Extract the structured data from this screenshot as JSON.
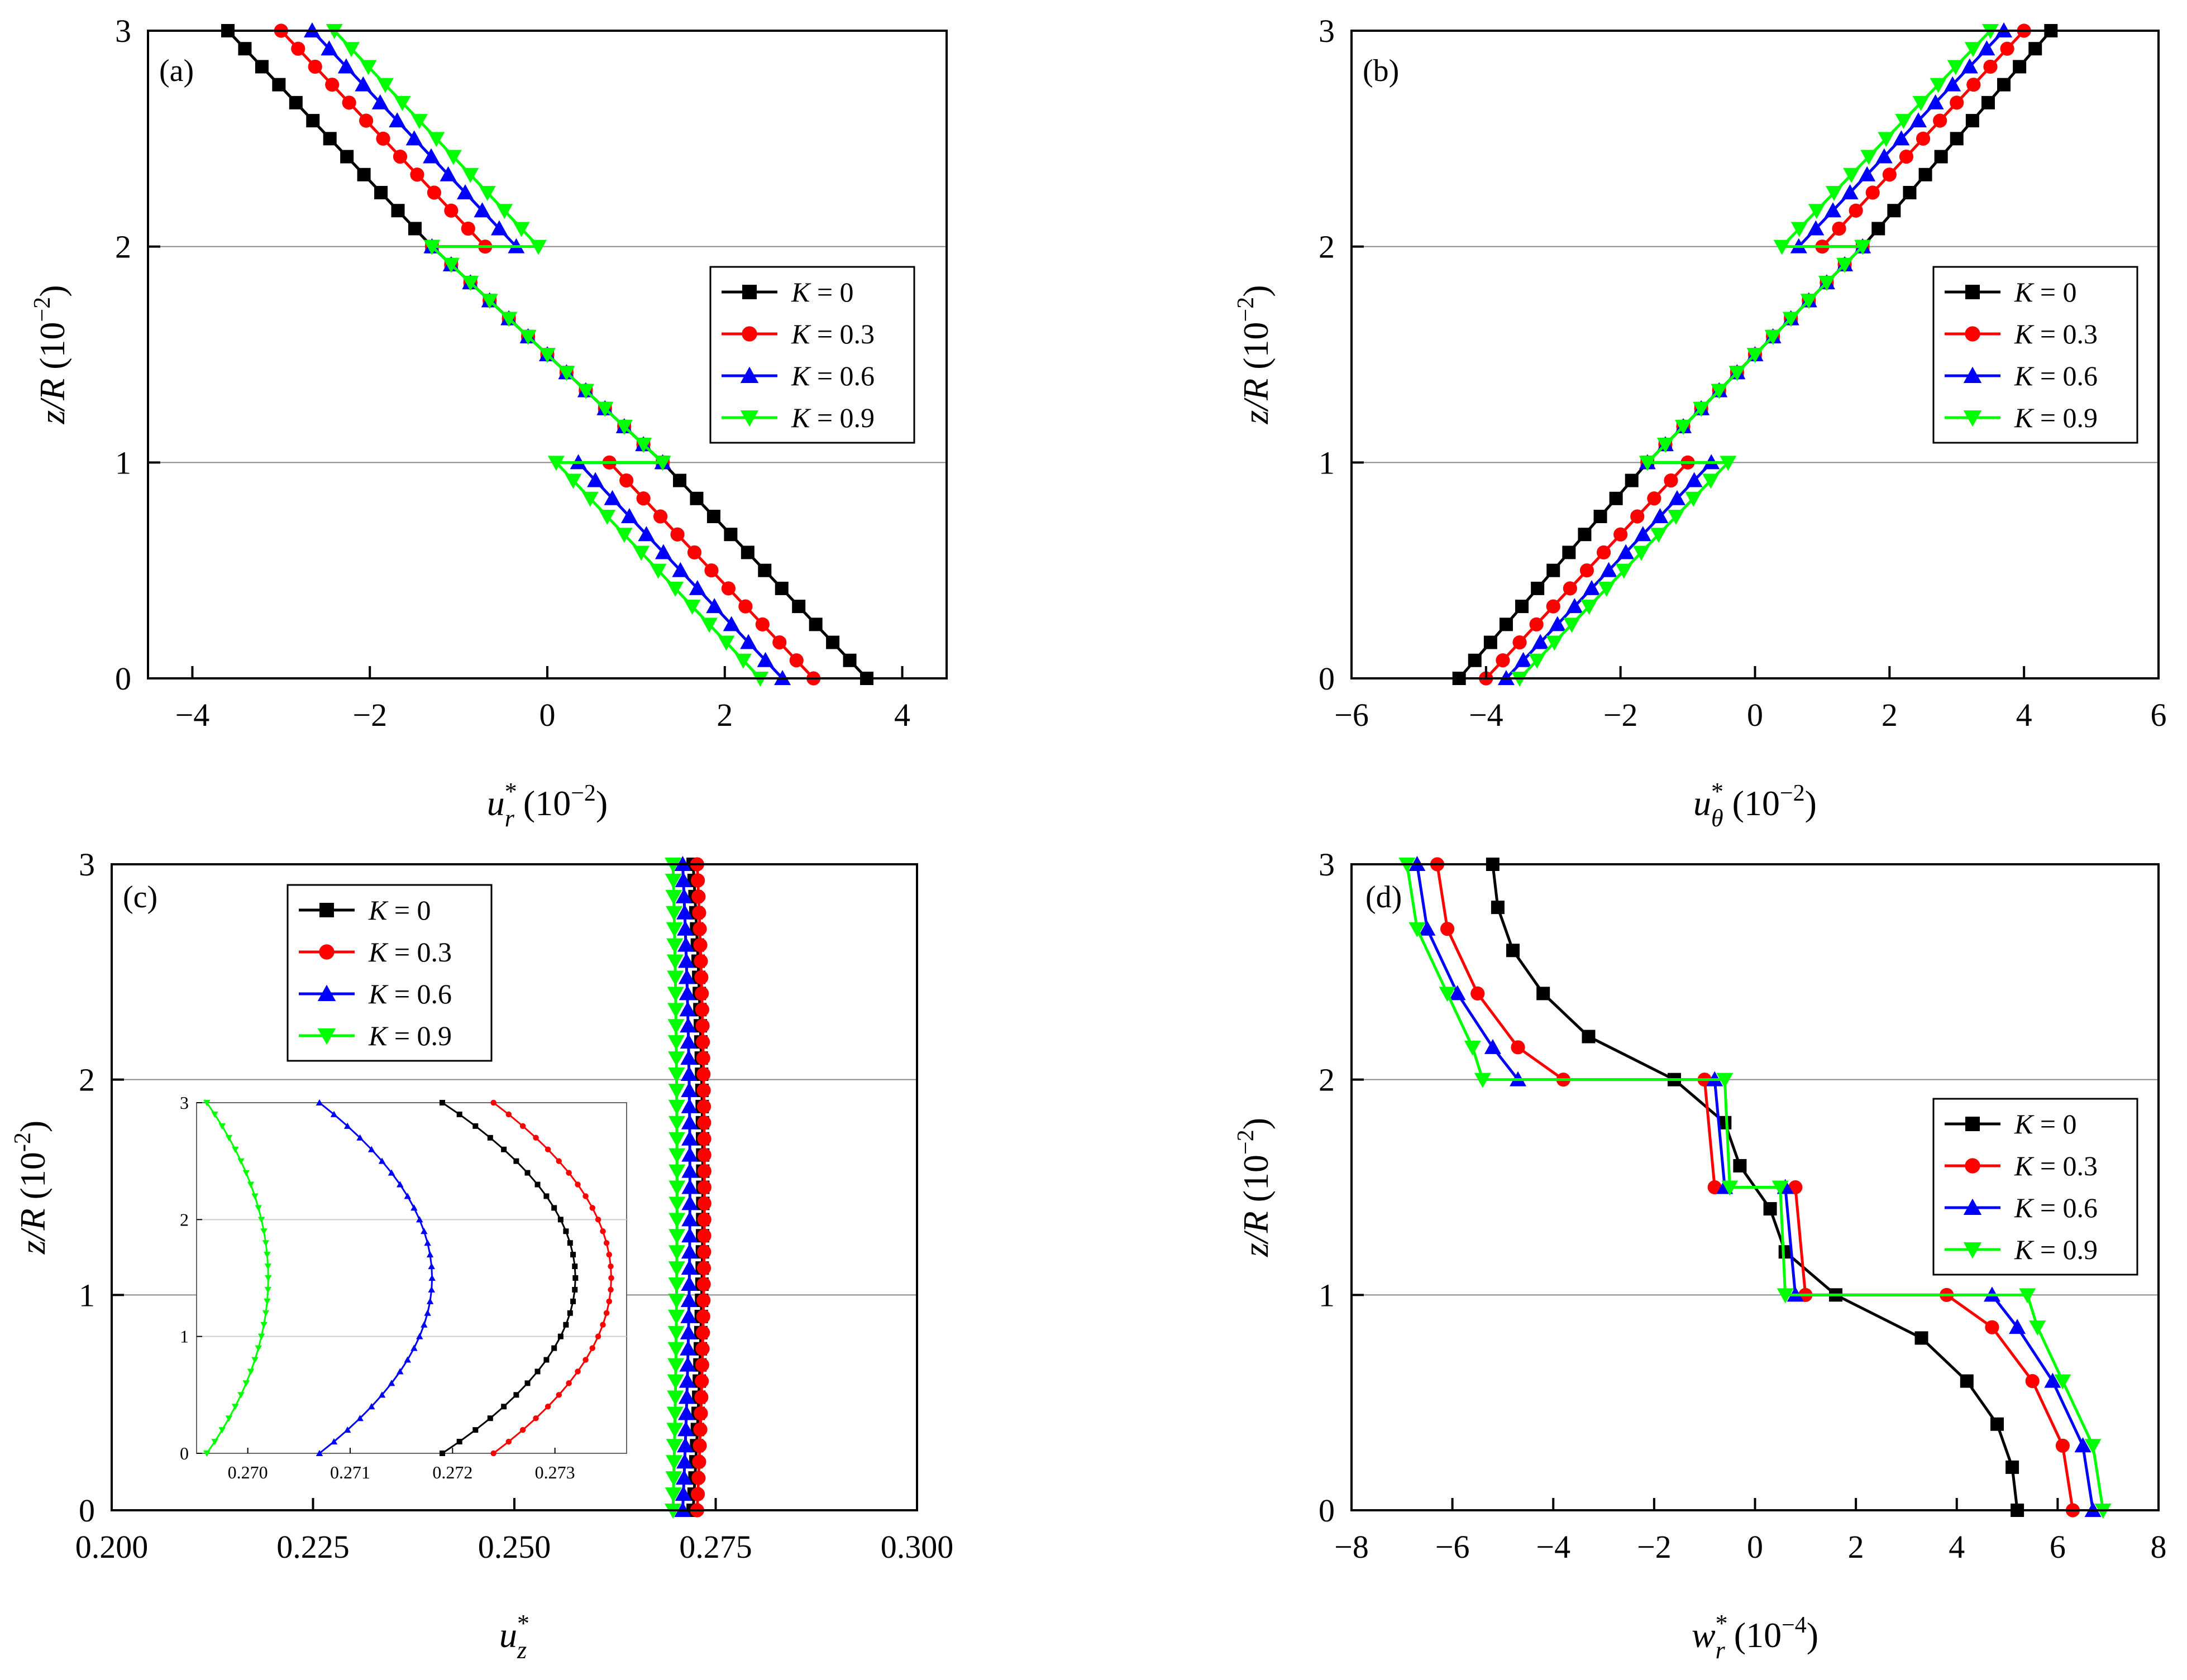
{
  "chart_data": [
    {
      "id": "a",
      "type": "line",
      "panel_label": "(a)",
      "xlabel": "u_r^* (10^-2)",
      "xlabel_main": "u",
      "xlabel_sup": "*",
      "xlabel_sub": "r",
      "xlabel_unit": " (10",
      "xlabel_exp": "−2",
      "xlabel_close": ")",
      "ylabel": "z/R (10^-2)",
      "ylabel_main": "z/R",
      "ylabel_unit": " (10",
      "ylabel_exp": "−2",
      "ylabel_close": ")",
      "xlim": [
        -4.5,
        4.5
      ],
      "ylim": [
        0,
        3
      ],
      "xticks": [
        -4,
        -2,
        0,
        2,
        4
      ],
      "xtick_labels": [
        "−4",
        "−2",
        "0",
        "2",
        "4"
      ],
      "yticks": [
        0,
        1,
        2,
        3
      ],
      "ytick_labels": [
        "0",
        "1",
        "2",
        "3"
      ],
      "hlines": [
        1,
        2
      ],
      "legend": {
        "position": "right-middle",
        "labels": [
          "K = 0",
          "K = 0.3",
          "K = 0.6",
          "K = 0.9"
        ]
      },
      "series": [
        {
          "name": "K = 0",
          "K": "0",
          "color": "#000000",
          "marker": "square",
          "segments": [
            {
              "z": [
                0,
                1
              ],
              "x": [
                3.6,
                1.3
              ]
            },
            {
              "z": [
                1,
                2
              ],
              "x": [
                1.3,
                -1.3
              ]
            },
            {
              "z": [
                2,
                3
              ],
              "x": [
                -1.3,
                -3.6
              ]
            }
          ]
        },
        {
          "name": "K = 0.3",
          "K": "0.3",
          "color": "#ff0000",
          "marker": "circle",
          "segments": [
            {
              "z": [
                0,
                1
              ],
              "x": [
                3.0,
                0.7
              ]
            },
            {
              "z": [
                1,
                2
              ],
              "x": [
                1.3,
                -1.3
              ]
            },
            {
              "z": [
                2,
                3
              ],
              "x": [
                -0.7,
                -3.0
              ]
            }
          ]
        },
        {
          "name": "K = 0.6",
          "K": "0.6",
          "color": "#0000ff",
          "marker": "triangle-up",
          "segments": [
            {
              "z": [
                0,
                1
              ],
              "x": [
                2.65,
                0.35
              ]
            },
            {
              "z": [
                1,
                2
              ],
              "x": [
                1.3,
                -1.3
              ]
            },
            {
              "z": [
                2,
                3
              ],
              "x": [
                -0.35,
                -2.65
              ]
            }
          ]
        },
        {
          "name": "K = 0.9",
          "K": "0.9",
          "color": "#00ff00",
          "marker": "triangle-down",
          "segments": [
            {
              "z": [
                0,
                1
              ],
              "x": [
                2.4,
                0.1
              ]
            },
            {
              "z": [
                1,
                2
              ],
              "x": [
                1.3,
                -1.3
              ]
            },
            {
              "z": [
                2,
                3
              ],
              "x": [
                -0.1,
                -2.4
              ]
            }
          ]
        }
      ]
    },
    {
      "id": "b",
      "type": "line",
      "panel_label": "(b)",
      "xlabel": "u_θ^* (10^-2)",
      "xlabel_main": "u",
      "xlabel_sup": "*",
      "xlabel_sub": "θ",
      "xlabel_unit": " (10",
      "xlabel_exp": "−2",
      "xlabel_close": ")",
      "ylabel": "z/R (10^-2)",
      "ylabel_main": "z/R",
      "ylabel_unit": " (10",
      "ylabel_exp": "−2",
      "ylabel_close": ")",
      "xlim": [
        -6,
        6
      ],
      "ylim": [
        0,
        3
      ],
      "xticks": [
        -6,
        -4,
        -2,
        0,
        2,
        4,
        6
      ],
      "xtick_labels": [
        "−6",
        "−4",
        "−2",
        "0",
        "2",
        "4",
        "6"
      ],
      "yticks": [
        0,
        1,
        2,
        3
      ],
      "ytick_labels": [
        "0",
        "1",
        "2",
        "3"
      ],
      "hlines": [
        1,
        2
      ],
      "legend": {
        "position": "right-middle",
        "labels": [
          "K = 0",
          "K = 0.3",
          "K = 0.6",
          "K = 0.9"
        ]
      },
      "series": [
        {
          "name": "K = 0",
          "K": "0",
          "color": "#000000",
          "marker": "square",
          "segments": [
            {
              "z": [
                0,
                1
              ],
              "x": [
                -4.4,
                -1.6
              ]
            },
            {
              "z": [
                1,
                2
              ],
              "x": [
                -1.6,
                1.6
              ]
            },
            {
              "z": [
                2,
                3
              ],
              "x": [
                1.6,
                4.4
              ]
            }
          ]
        },
        {
          "name": "K = 0.3",
          "K": "0.3",
          "color": "#ff0000",
          "marker": "circle",
          "segments": [
            {
              "z": [
                0,
                1
              ],
              "x": [
                -4.0,
                -1.0
              ]
            },
            {
              "z": [
                1,
                2
              ],
              "x": [
                -1.6,
                1.6
              ]
            },
            {
              "z": [
                2,
                3
              ],
              "x": [
                1.0,
                4.0
              ]
            }
          ]
        },
        {
          "name": "K = 0.6",
          "K": "0.6",
          "color": "#0000ff",
          "marker": "triangle-up",
          "segments": [
            {
              "z": [
                0,
                1
              ],
              "x": [
                -3.7,
                -0.65
              ]
            },
            {
              "z": [
                1,
                2
              ],
              "x": [
                -1.6,
                1.6
              ]
            },
            {
              "z": [
                2,
                3
              ],
              "x": [
                0.65,
                3.7
              ]
            }
          ]
        },
        {
          "name": "K = 0.9",
          "K": "0.9",
          "color": "#00ff00",
          "marker": "triangle-down",
          "segments": [
            {
              "z": [
                0,
                1
              ],
              "x": [
                -3.5,
                -0.4
              ]
            },
            {
              "z": [
                1,
                2
              ],
              "x": [
                -1.6,
                1.6
              ]
            },
            {
              "z": [
                2,
                3
              ],
              "x": [
                0.4,
                3.5
              ]
            }
          ]
        }
      ]
    },
    {
      "id": "c",
      "type": "line",
      "panel_label": "(c)",
      "xlabel": "u_z^*",
      "xlabel_main": "u",
      "xlabel_sup": "*",
      "xlabel_sub": "z",
      "xlabel_unit": "",
      "xlabel_exp": "",
      "xlabel_close": "",
      "ylabel": "z/R (10^-2)",
      "ylabel_main": "z/R",
      "ylabel_unit": " (10",
      "ylabel_exp": "-2",
      "ylabel_close": ")",
      "xlim": [
        0.2,
        0.3
      ],
      "ylim": [
        0,
        3
      ],
      "xticks": [
        0.2,
        0.225,
        0.25,
        0.275,
        0.3
      ],
      "xtick_labels": [
        "0.200",
        "0.225",
        "0.250",
        "0.275",
        "0.300"
      ],
      "yticks": [
        0,
        1,
        2,
        3
      ],
      "ytick_labels": [
        "0",
        "1",
        "2",
        "3"
      ],
      "hlines": [
        1,
        2
      ],
      "legend": {
        "position": "top-left",
        "labels": [
          "K = 0",
          "K = 0.3",
          "K = 0.6",
          "K = 0.9"
        ]
      },
      "series": [
        {
          "name": "K = 0",
          "K": "0",
          "color": "#000000",
          "marker": "square",
          "center": 0.2722,
          "bulge": 0.0012
        },
        {
          "name": "K = 0.3",
          "K": "0.3",
          "color": "#ff0000",
          "marker": "circle",
          "center": 0.2727,
          "bulge": 0.0009
        },
        {
          "name": "K = 0.6",
          "K": "0.6",
          "color": "#0000ff",
          "marker": "triangle-up",
          "center": 0.2709,
          "bulge": 0.0009
        },
        {
          "name": "K = 0.9",
          "K": "0.9",
          "color": "#00ff00",
          "marker": "triangle-down",
          "center": 0.2697,
          "bulge": 0.0005
        }
      ],
      "inset": {
        "xlim": [
          0.2695,
          0.2737
        ],
        "ylim": [
          0,
          3
        ],
        "xticks": [
          0.27,
          0.271,
          0.272,
          0.273
        ],
        "xtick_labels": [
          "0.270",
          "0.271",
          "0.272",
          "0.273"
        ],
        "yticks": [
          0,
          1,
          2,
          3
        ],
        "ytick_labels": [
          "0",
          "1",
          "2",
          "3"
        ],
        "grid_y": [
          1,
          2
        ],
        "series": [
          {
            "name": "K = 0",
            "color": "#000000",
            "marker": "square",
            "z": [
              0,
              1.5,
              3
            ],
            "x": [
              0.2719,
              0.2732,
              0.272
            ]
          },
          {
            "name": "K = 0.3",
            "color": "#ff0000",
            "marker": "circle",
            "z": [
              0,
              1.5,
              3
            ],
            "x": [
              0.2724,
              0.27355,
              0.2725
            ]
          },
          {
            "name": "K = 0.6",
            "color": "#0000ff",
            "marker": "triangle-up",
            "z": [
              0,
              1.5,
              3
            ],
            "x": [
              0.2707,
              0.2718,
              0.2708
            ]
          },
          {
            "name": "K = 0.9",
            "color": "#00ff00",
            "marker": "triangle-down",
            "z": [
              0,
              1.5,
              3
            ],
            "x": [
              0.2696,
              0.2702,
              0.2696
            ]
          }
        ]
      }
    },
    {
      "id": "d",
      "type": "line",
      "panel_label": "(d)",
      "xlabel": "w_r^* (10^-4)",
      "xlabel_main": "w",
      "xlabel_sup": "*",
      "xlabel_sub": "r",
      "xlabel_unit": " (10",
      "xlabel_exp": "−4",
      "xlabel_close": ")",
      "ylabel": "z/R (10^-2)",
      "ylabel_main": "z/R",
      "ylabel_unit": " (10",
      "ylabel_exp": "−2",
      "ylabel_close": ")",
      "xlim": [
        -8,
        8
      ],
      "ylim": [
        0,
        3
      ],
      "xticks": [
        -8,
        -6,
        -4,
        -2,
        0,
        2,
        4,
        6,
        8
      ],
      "xtick_labels": [
        "−8",
        "−6",
        "−4",
        "−2",
        "0",
        "2",
        "4",
        "6",
        "8"
      ],
      "yticks": [
        0,
        1,
        2,
        3
      ],
      "ytick_labels": [
        "0",
        "1",
        "2",
        "3"
      ],
      "hlines": [
        1,
        2
      ],
      "legend": {
        "position": "right-middle",
        "labels": [
          "K = 0",
          "K = 0.3",
          "K = 0.6",
          "K = 0.9"
        ]
      },
      "series": [
        {
          "name": "K = 0",
          "K": "0",
          "color": "#000000",
          "marker": "square",
          "points": [
            [
              5.2,
              0
            ],
            [
              5.1,
              0.2
            ],
            [
              4.8,
              0.4
            ],
            [
              4.2,
              0.6
            ],
            [
              3.3,
              0.8
            ],
            [
              1.6,
              1.0
            ],
            [
              0.6,
              1.2
            ],
            [
              0.3,
              1.4
            ],
            [
              -0.3,
              1.6
            ],
            [
              -0.6,
              1.8
            ],
            [
              -1.6,
              2.0
            ],
            [
              -3.3,
              2.2
            ],
            [
              -4.2,
              2.4
            ],
            [
              -4.8,
              2.6
            ],
            [
              -5.1,
              2.8
            ],
            [
              -5.2,
              3.0
            ]
          ]
        },
        {
          "name": "K = 0.3",
          "K": "0.3",
          "color": "#ff0000",
          "marker": "circle",
          "points": [
            [
              6.3,
              0
            ],
            [
              6.1,
              0.3
            ],
            [
              5.5,
              0.6
            ],
            [
              4.7,
              0.85
            ],
            [
              3.8,
              1.0
            ],
            [
              1.0,
              1.0
            ],
            [
              0.8,
              1.5
            ],
            [
              -0.8,
              1.5
            ],
            [
              -1.0,
              2.0
            ],
            [
              -3.8,
              2.0
            ],
            [
              -4.7,
              2.15
            ],
            [
              -5.5,
              2.4
            ],
            [
              -6.1,
              2.7
            ],
            [
              -6.3,
              3.0
            ]
          ]
        },
        {
          "name": "K = 0.6",
          "K": "0.6",
          "color": "#0000ff",
          "marker": "triangle-up",
          "points": [
            [
              6.7,
              0
            ],
            [
              6.5,
              0.3
            ],
            [
              5.9,
              0.6
            ],
            [
              5.2,
              0.85
            ],
            [
              4.7,
              1.0
            ],
            [
              0.8,
              1.0
            ],
            [
              0.6,
              1.5
            ],
            [
              -0.6,
              1.5
            ],
            [
              -0.8,
              2.0
            ],
            [
              -4.7,
              2.0
            ],
            [
              -5.2,
              2.15
            ],
            [
              -5.9,
              2.4
            ],
            [
              -6.5,
              2.7
            ],
            [
              -6.7,
              3.0
            ]
          ]
        },
        {
          "name": "K = 0.9",
          "K": "0.9",
          "color": "#00ff00",
          "marker": "triangle-down",
          "points": [
            [
              6.9,
              0
            ],
            [
              6.7,
              0.3
            ],
            [
              6.1,
              0.6
            ],
            [
              5.6,
              0.85
            ],
            [
              5.4,
              1.0
            ],
            [
              0.6,
              1.0
            ],
            [
              0.5,
              1.5
            ],
            [
              -0.5,
              1.5
            ],
            [
              -0.6,
              2.0
            ],
            [
              -5.4,
              2.0
            ],
            [
              -5.6,
              2.15
            ],
            [
              -6.1,
              2.4
            ],
            [
              -6.7,
              2.7
            ],
            [
              -6.9,
              3.0
            ]
          ]
        }
      ]
    }
  ]
}
